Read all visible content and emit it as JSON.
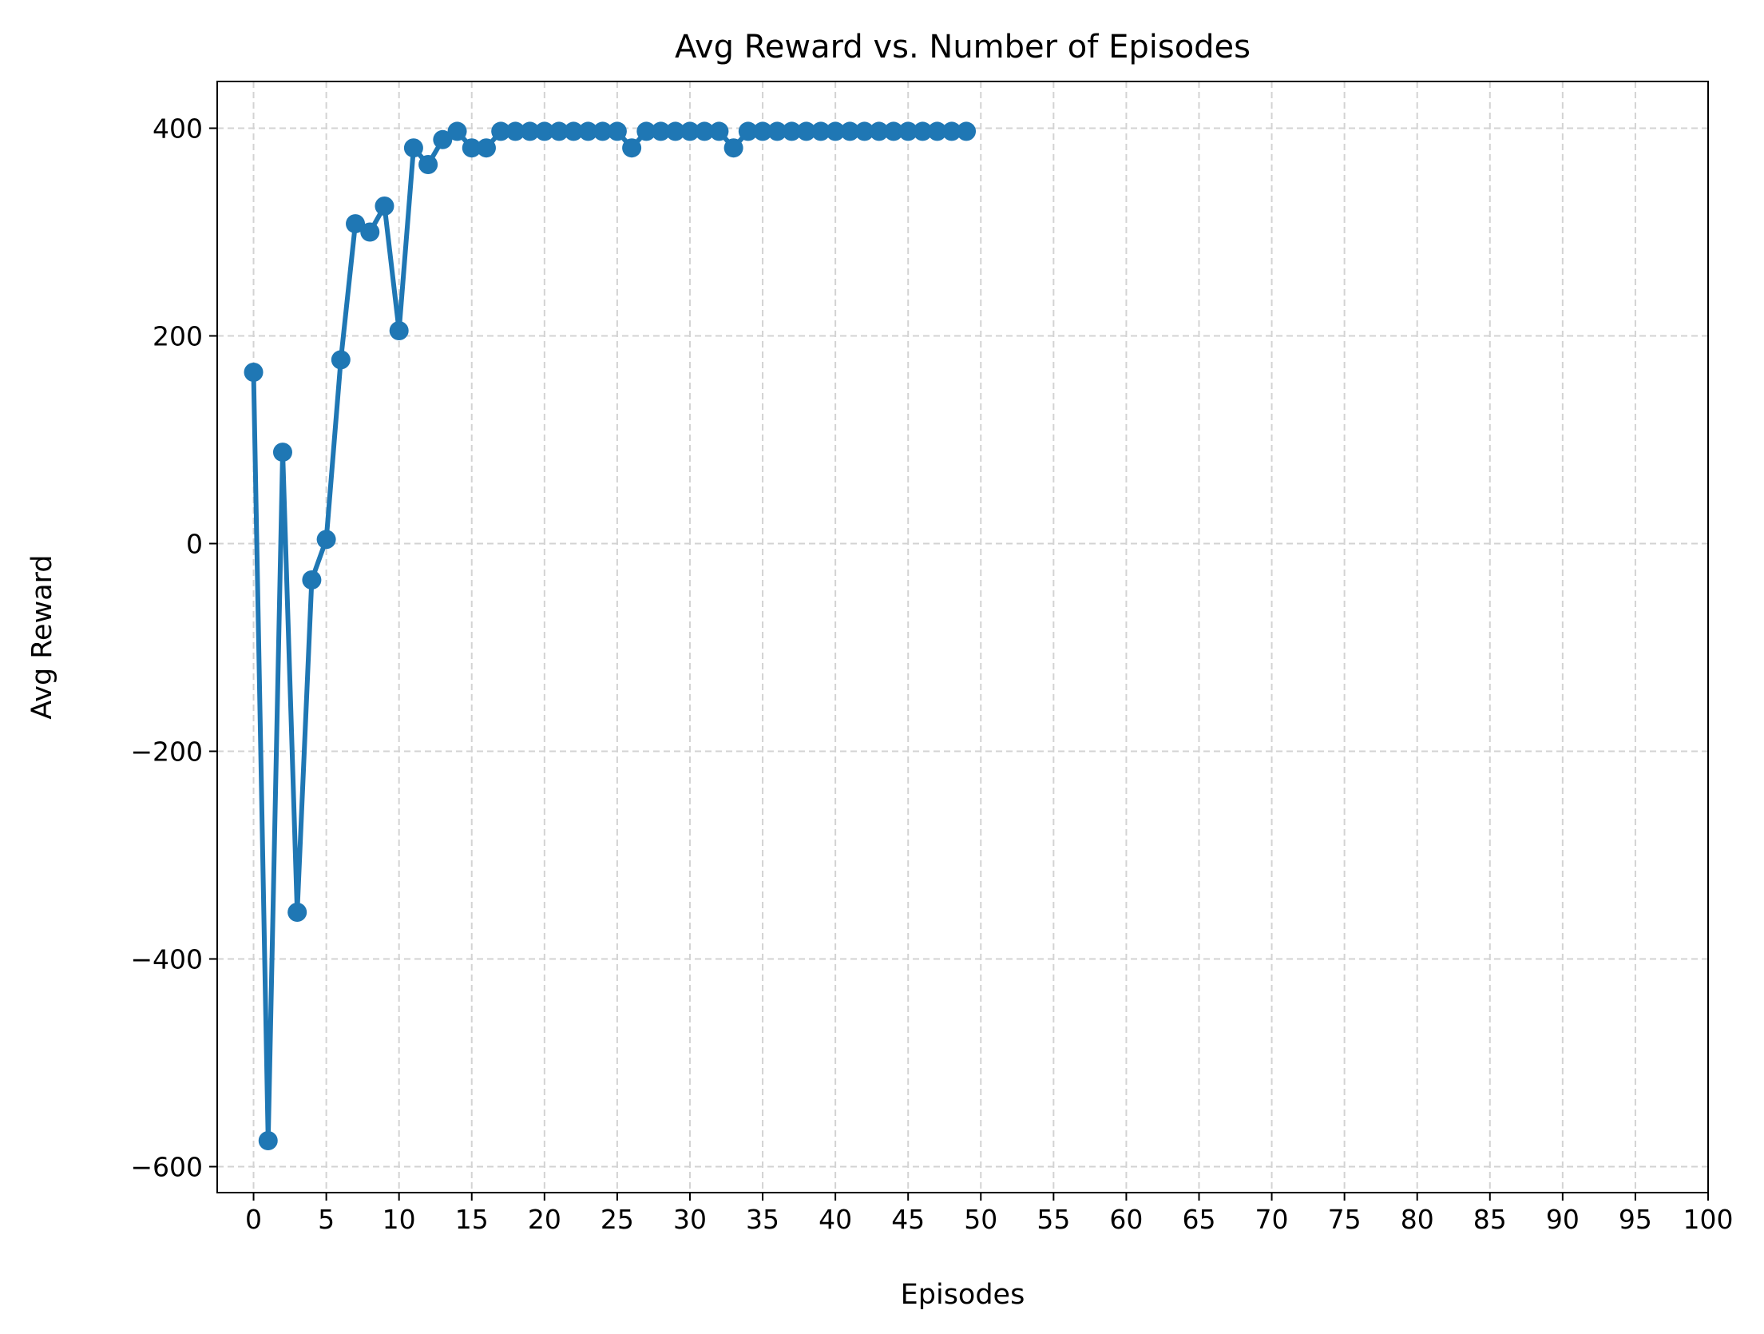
{
  "chart_data": {
    "type": "line",
    "title": "Avg Reward vs. Number of Episodes",
    "xlabel": "Episodes",
    "ylabel": "Avg Reward",
    "xlim": [
      -2.5,
      100
    ],
    "ylim": [
      -625,
      445
    ],
    "xticks": [
      0,
      5,
      10,
      15,
      20,
      25,
      30,
      35,
      40,
      45,
      50,
      55,
      60,
      65,
      70,
      75,
      80,
      85,
      90,
      95,
      100
    ],
    "yticks": [
      -600,
      -400,
      -200,
      0,
      200,
      400
    ],
    "grid": true,
    "grid_style": "dashed",
    "markers": true,
    "color": "#1f77b4",
    "series": [
      {
        "x": [
          0,
          1,
          2,
          3,
          4,
          5,
          6,
          7,
          8,
          9,
          10,
          11,
          12,
          13,
          14,
          15,
          16,
          17,
          18,
          19,
          20,
          21,
          22,
          23,
          24,
          25,
          26,
          27,
          28,
          29,
          30,
          31,
          32,
          33,
          34,
          35,
          36,
          37,
          38,
          39,
          40,
          41,
          42,
          43,
          44,
          45,
          46,
          47,
          48,
          49
        ],
        "values": [
          165,
          -575,
          88,
          -355,
          -35,
          4,
          177,
          308,
          300,
          325,
          205,
          381,
          365,
          389,
          397,
          381,
          381,
          397,
          397,
          397,
          397,
          397,
          397,
          397,
          397,
          397,
          381,
          397,
          397,
          397,
          397,
          397,
          397,
          381,
          397,
          397,
          397,
          397,
          397,
          397,
          397,
          397,
          397,
          397,
          397,
          397,
          397,
          397,
          397,
          397
        ]
      }
    ]
  }
}
